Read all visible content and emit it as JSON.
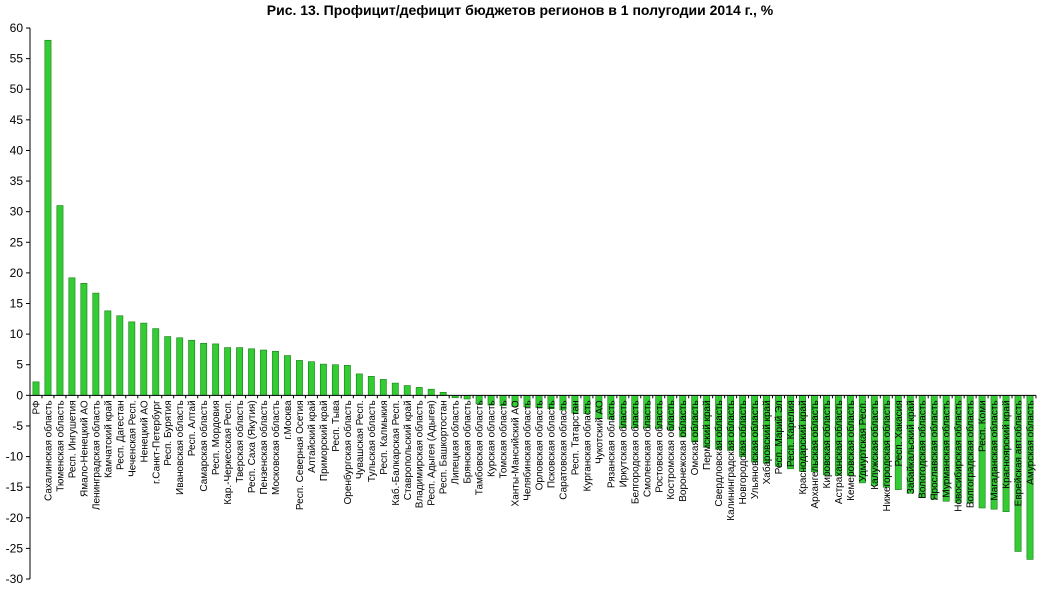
{
  "chart_data": {
    "type": "bar",
    "title": "Рис. 13. Профицит/дефицит бюджетов регионов в 1 полугодии 2014 г., %",
    "xlabel": "",
    "ylabel": "",
    "ylim": [
      -30,
      60
    ],
    "yticks": [
      60,
      55,
      50,
      45,
      40,
      35,
      30,
      25,
      20,
      15,
      10,
      5,
      0,
      -5,
      -10,
      -15,
      -20,
      -25,
      -30
    ],
    "grid": false,
    "bar_color": "#33cc33",
    "bar_edge_color": "#1a7a1a",
    "categories": [
      "РФ",
      "Сахалинская область",
      "Тюменская область",
      "Респ. Ингушетия",
      "Ямало-Ненецкий АО",
      "Ленинградская область",
      "Камчатский край",
      "Респ. Дагестан",
      "Чеченская Респ.",
      "Ненецкий АО",
      "г.Санкт-Петербург",
      "Респ. Бурятия",
      "Ивановская область",
      "Респ. Алтай",
      "Самарская область",
      "Респ. Мордовия",
      "Кар.-Черкесская Респ.",
      "Тверская область",
      "Респ. Саха (Якутия)",
      "Пензенская область",
      "Московская область",
      "г.Москва",
      "Респ. Северная Осетия",
      "Алтайский край",
      "Приморский край",
      "Респ. Тыва",
      "Оренбургская область",
      "Чувашская Респ.",
      "Тульская область",
      "Респ. Калмыкия",
      "Каб.-Балкарская Респ.",
      "Ставропольский край",
      "Владимирская область",
      "Респ. Адыгея (Адыгея)",
      "Респ. Башкортостан",
      "Липецкая область",
      "Брянская область",
      "Тамбовская область",
      "Курская область",
      "Томская область",
      "Ханты-Мансийский АО",
      "Челябинская область",
      "Орловская область",
      "Псковская область",
      "Саратовская область",
      "Респ. Татарстан",
      "Курганская область",
      "Чукотский АО",
      "Рязанская область",
      "Иркутская область",
      "Белгородская область",
      "Смоленская область",
      "Ростовская область",
      "Костромская область",
      "Воронежская область",
      "Омская область",
      "Пермский край",
      "Свердловская область",
      "Калининградская область",
      "Новгородская область",
      "Ульяновская область",
      "Хабаровский край",
      "Респ. Марий Эл",
      "Респ. Карелия",
      "Краснодарский край",
      "Архангельская область",
      "Кировская область",
      "Астраханская область",
      "Кемеровская область",
      "Удмуртская Респ.",
      "Калужская область",
      "Нижегородская область",
      "Респ. Хакасия",
      "Забайкальский край",
      "Вологодская область",
      "Ярославская область",
      "Мурманская область",
      "Новосибирская область",
      "Волгоградская область",
      "Респ. Коми",
      "Магаданская область",
      "Красноярский край",
      "Еврейская авт.область",
      "Амурская область"
    ],
    "values": [
      2.2,
      58,
      31,
      19.2,
      18.3,
      16.7,
      13.8,
      13,
      12,
      11.8,
      10.9,
      9.6,
      9.4,
      9,
      8.5,
      8.4,
      7.8,
      7.8,
      7.6,
      7.4,
      7.2,
      6.5,
      5.7,
      5.5,
      5.1,
      5.0,
      4.9,
      3.5,
      3.1,
      2.6,
      2.0,
      1.6,
      1.3,
      1.0,
      0.5,
      -0.4,
      -0.6,
      -1.4,
      -1.6,
      -1.7,
      -1.8,
      -1.9,
      -2.0,
      -2.2,
      -2.4,
      -2.9,
      -3.0,
      -3.8,
      -3.9,
      -5.3,
      -5.3,
      -5.3,
      -5.4,
      -5.6,
      -6.8,
      -7.6,
      -8.5,
      -8.8,
      -9.0,
      -10.0,
      -10.9,
      -11.1,
      -11.6,
      -12.0,
      -12.4,
      -12.5,
      -13.0,
      -13.1,
      -13.1,
      -14.3,
      -14.7,
      -15.0,
      -15.4,
      -16.0,
      -16.7,
      -17.0,
      -17.3,
      -17.5,
      -17.6,
      -18.4,
      -18.6,
      -19.0,
      -25.5,
      -26.8
    ]
  }
}
